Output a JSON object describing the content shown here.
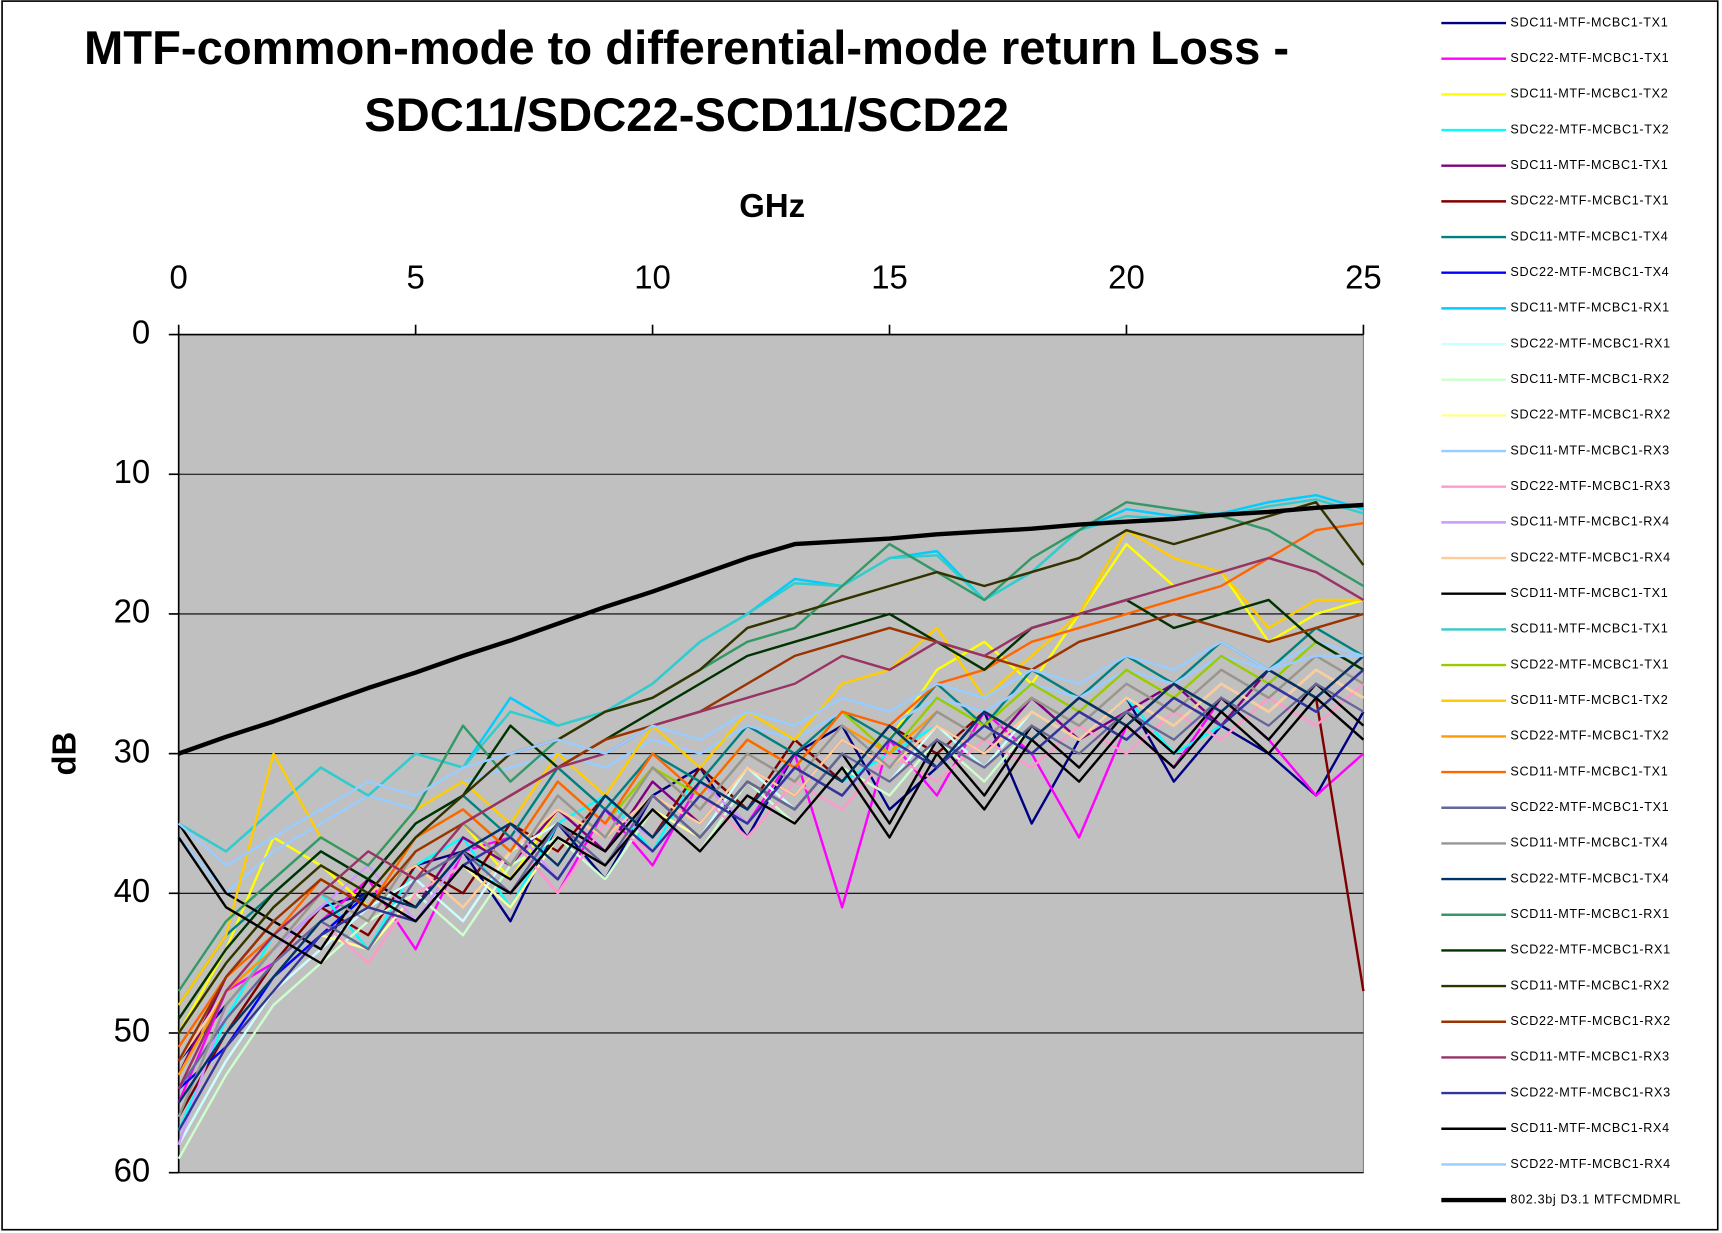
{
  "chart_data": {
    "type": "line",
    "title": [
      "MTF-common-mode to differential-mode return Loss -",
      "SDC11/SDC22-SCD11/SCD22"
    ],
    "x_label": "GHz",
    "y_label": "dB",
    "x": [
      0,
      1,
      2,
      3,
      4,
      5,
      6,
      7,
      8,
      9,
      10,
      11,
      12,
      13,
      14,
      15,
      16,
      17,
      18,
      19,
      20,
      21,
      22,
      23,
      24,
      25
    ],
    "xlim": [
      0,
      25
    ],
    "xticks": [
      0,
      5,
      10,
      15,
      20,
      25
    ],
    "ylim": [
      0,
      60
    ],
    "yticks": [
      0,
      10,
      20,
      30,
      40,
      50,
      60
    ],
    "y_reversed": true,
    "x_axis_position": "top",
    "grid": true,
    "plot_background": "#c0c0c0",
    "legend": "right",
    "series": [
      {
        "name": "SDC11-MTF-MCBC1-TX1",
        "color": "#000080",
        "values": [
          52,
          48,
          44,
          41,
          40,
          38,
          37,
          42,
          35,
          39,
          33,
          31,
          36,
          30,
          28,
          34,
          31,
          27,
          35,
          29,
          26,
          32,
          28,
          30,
          33,
          27
        ]
      },
      {
        "name": "SDC22-MTF-MCBC1-TX1",
        "color": "#ff00ff",
        "values": [
          55,
          47,
          45,
          42,
          39,
          44,
          37,
          36,
          40,
          34,
          38,
          32,
          35,
          30,
          41,
          29,
          33,
          27,
          30,
          36,
          28,
          31,
          26,
          29,
          33,
          30
        ]
      },
      {
        "name": "SDC11-MTF-MCBC1-TX2",
        "color": "#ffff00",
        "values": [
          50,
          44,
          36,
          38,
          41,
          37,
          35,
          39,
          34,
          36,
          31,
          33,
          29,
          31,
          27,
          29,
          24,
          22,
          25,
          20,
          15,
          18,
          17,
          22,
          20,
          19
        ]
      },
      {
        "name": "SDC22-MTF-MCBC1-TX2",
        "color": "#00ffff",
        "values": [
          57,
          49,
          43,
          40,
          44,
          38,
          36,
          41,
          35,
          33,
          37,
          31,
          34,
          29,
          32,
          30,
          28,
          31,
          27,
          29,
          26,
          30,
          28,
          25,
          27,
          24
        ]
      },
      {
        "name": "SDC11-MTF-MCBC1-TX1",
        "color": "#800080",
        "values": [
          53,
          46,
          42,
          44,
          39,
          41,
          36,
          38,
          34,
          37,
          32,
          35,
          31,
          33,
          29,
          31,
          28,
          30,
          26,
          29,
          27,
          25,
          28,
          24,
          26,
          23
        ]
      },
      {
        "name": "SDC22-MTF-MCBC1-TX1",
        "color": "#800000",
        "values": [
          56,
          50,
          45,
          41,
          43,
          38,
          40,
          35,
          37,
          33,
          36,
          31,
          34,
          29,
          32,
          28,
          30,
          27,
          29,
          26,
          28,
          25,
          27,
          24,
          26,
          47
        ]
      },
      {
        "name": "SDC11-MTF-MCBC1-TX4",
        "color": "#008080",
        "values": [
          48,
          43,
          40,
          37,
          39,
          35,
          33,
          36,
          31,
          34,
          30,
          32,
          28,
          30,
          27,
          29,
          25,
          28,
          24,
          26,
          23,
          25,
          22,
          24,
          21,
          23
        ]
      },
      {
        "name": "SDC22-MTF-MCBC1-TX4",
        "color": "#0000ff",
        "values": [
          54,
          51,
          46,
          43,
          40,
          42,
          38,
          36,
          39,
          34,
          37,
          33,
          35,
          31,
          33,
          29,
          31,
          28,
          30,
          27,
          29,
          26,
          28,
          25,
          27,
          24
        ]
      },
      {
        "name": "SDC11-MTF-MCBC1-RX1",
        "color": "#00ccff",
        "values": [
          35,
          37,
          34,
          31,
          33,
          30,
          31,
          26,
          28,
          27,
          25,
          22,
          20,
          17.5,
          18,
          16,
          15.5,
          19,
          17,
          14,
          12.5,
          13,
          12.8,
          12,
          11.5,
          12.5
        ]
      },
      {
        "name": "SDC22-MTF-MCBC1-RX1",
        "color": "#ccffff",
        "values": [
          58,
          52,
          47,
          44,
          41,
          39,
          42,
          37,
          35,
          38,
          33,
          36,
          31,
          34,
          30,
          32,
          28,
          31,
          27,
          29,
          26,
          28,
          25,
          27,
          24,
          26
        ]
      },
      {
        "name": "SDC11-MTF-MCBC1-RX2",
        "color": "#ccffcc",
        "values": [
          59,
          53,
          48,
          45,
          42,
          40,
          43,
          38,
          36,
          39,
          34,
          37,
          32,
          35,
          31,
          33,
          29,
          32,
          28,
          30,
          27,
          29,
          26,
          28,
          25,
          27
        ]
      },
      {
        "name": "SDC22-MTF-MCBC1-RX2",
        "color": "#ffff99",
        "values": [
          57,
          51,
          47,
          43,
          44,
          40,
          38,
          41,
          36,
          38,
          34,
          36,
          32,
          34,
          30,
          32,
          29,
          31,
          28,
          30,
          27,
          29,
          26,
          28,
          25,
          27
        ]
      },
      {
        "name": "SDC11-MTF-MCBC1-RX3",
        "color": "#99ccff",
        "values": [
          36,
          40,
          37,
          35,
          33,
          34,
          32,
          31,
          30,
          31,
          29,
          30,
          28,
          29,
          27,
          28,
          26,
          27,
          25,
          26,
          24,
          25,
          23,
          24,
          22,
          23
        ]
      },
      {
        "name": "SDC22-MTF-MCBC1-RX3",
        "color": "#ff99cc",
        "values": [
          55,
          50,
          46,
          42,
          45,
          40,
          38,
          36,
          40,
          35,
          37,
          33,
          36,
          32,
          34,
          30,
          32,
          29,
          31,
          28,
          30,
          27,
          29,
          26,
          28,
          25
        ]
      },
      {
        "name": "SDC11-MTF-MCBC1-RX4",
        "color": "#cc99ff",
        "values": [
          58,
          48,
          44,
          41,
          38,
          42,
          37,
          35,
          39,
          34,
          36,
          32,
          35,
          31,
          33,
          29,
          31,
          28,
          30,
          27,
          29,
          26,
          28,
          25,
          27,
          24
        ]
      },
      {
        "name": "SDC22-MTF-MCBC1-RX4",
        "color": "#ffcc99",
        "values": [
          52,
          47,
          43,
          45,
          40,
          38,
          41,
          37,
          34,
          36,
          33,
          35,
          31,
          33,
          29,
          31,
          28,
          30,
          27,
          29,
          26,
          28,
          25,
          27,
          24,
          26
        ]
      },
      {
        "name": "SCD11-MTF-MCBC1-TX1",
        "color": "#000000",
        "values": [
          35,
          40,
          42,
          44,
          39,
          41,
          37,
          39,
          35,
          37,
          33,
          36,
          32,
          34,
          30,
          35,
          29,
          33,
          28,
          31,
          27,
          30,
          26,
          29,
          25,
          28
        ]
      },
      {
        "name": "SCD11-MTF-MCBC1-TX1",
        "color": "#33cccc",
        "values": [
          35,
          37,
          34,
          31,
          33,
          30,
          31,
          27,
          28,
          27,
          25,
          22,
          20,
          17.8,
          18,
          16,
          15.8,
          19,
          17,
          14,
          13,
          13.2,
          13,
          12.3,
          11.8,
          12.8
        ]
      },
      {
        "name": "SCD22-MTF-MCBC1-TX1",
        "color": "#99cc00",
        "values": [
          50,
          45,
          41,
          38,
          40,
          36,
          34,
          37,
          32,
          35,
          31,
          33,
          29,
          31,
          27,
          30,
          26,
          28,
          25,
          27,
          24,
          26,
          23,
          25,
          22,
          24
        ]
      },
      {
        "name": "SCD11-MTF-MCBC1-TX2",
        "color": "#ffcc00",
        "values": [
          48,
          43,
          30,
          36,
          38,
          34,
          32,
          35,
          30,
          33,
          28,
          31,
          27,
          29,
          25,
          24,
          21,
          26,
          23,
          20,
          14,
          16,
          17,
          21,
          19,
          19
        ]
      },
      {
        "name": "SCD22-MTF-MCBC1-TX2",
        "color": "#ff9900",
        "values": [
          53,
          47,
          44,
          40,
          42,
          37,
          35,
          38,
          33,
          36,
          31,
          34,
          30,
          32,
          28,
          30,
          27,
          29,
          26,
          28,
          25,
          27,
          24,
          26,
          23,
          25
        ]
      },
      {
        "name": "SCD11-MTF-MCBC1-TX1",
        "color": "#ff6600",
        "values": [
          51,
          46,
          43,
          39,
          41,
          36,
          34,
          37,
          32,
          35,
          30,
          33,
          29,
          31,
          27,
          28,
          25,
          24,
          22,
          21,
          20,
          19,
          18,
          16,
          14,
          13.5
        ]
      },
      {
        "name": "SCD22-MTF-MCBC1-TX1",
        "color": "#666699",
        "values": [
          54,
          49,
          45,
          42,
          44,
          39,
          37,
          40,
          35,
          38,
          33,
          36,
          32,
          34,
          30,
          32,
          29,
          31,
          28,
          30,
          27,
          29,
          26,
          28,
          25,
          27
        ]
      },
      {
        "name": "SCD11-MTF-MCBC1-TX4",
        "color": "#969696",
        "values": [
          56,
          48,
          44,
          40,
          42,
          37,
          35,
          38,
          33,
          36,
          31,
          34,
          30,
          32,
          28,
          31,
          27,
          29,
          26,
          28,
          25,
          27,
          24,
          26,
          23,
          25
        ]
      },
      {
        "name": "SCD22-MTF-MCBC1-TX4",
        "color": "#003366",
        "values": [
          55,
          50,
          46,
          42,
          40,
          41,
          37,
          35,
          38,
          33,
          36,
          32,
          34,
          30,
          32,
          28,
          31,
          27,
          29,
          26,
          28,
          25,
          27,
          24,
          26,
          23
        ]
      },
      {
        "name": "SCD11-MTF-MCBC1-RX1",
        "color": "#339966",
        "values": [
          47,
          42,
          39,
          36,
          38,
          34,
          28,
          32,
          29,
          27,
          26,
          24,
          22,
          21,
          18,
          15,
          17,
          19,
          16,
          14,
          12,
          12.5,
          13,
          14,
          16,
          18
        ]
      },
      {
        "name": "SCD22-MTF-MCBC1-RX1",
        "color": "#003300",
        "values": [
          49,
          44,
          40,
          37,
          39,
          35,
          33,
          28,
          31,
          29,
          27,
          25,
          23,
          22,
          21,
          20,
          22,
          24,
          21,
          20,
          19,
          21,
          20,
          19,
          22,
          24
        ]
      },
      {
        "name": "SCD11-MTF-MCBC1-RX2",
        "color": "#333300",
        "values": [
          50,
          45,
          41,
          38,
          40,
          36,
          33,
          30,
          29,
          27,
          26,
          24,
          21,
          20,
          19,
          18,
          17,
          18,
          17,
          16,
          14,
          15,
          14,
          13,
          12,
          16.5
        ]
      },
      {
        "name": "SCD22-MTF-MCBC1-RX2",
        "color": "#993300",
        "values": [
          52,
          46,
          42,
          39,
          41,
          37,
          35,
          33,
          31,
          29,
          28,
          27,
          25,
          23,
          22,
          21,
          22,
          23,
          24,
          22,
          21,
          20,
          21,
          22,
          21,
          20
        ]
      },
      {
        "name": "SCD11-MTF-MCBC1-RX3",
        "color": "#993366",
        "values": [
          54,
          47,
          43,
          40,
          37,
          39,
          35,
          33,
          31,
          30,
          28,
          27,
          26,
          25,
          23,
          24,
          22,
          23,
          21,
          20,
          19,
          18,
          17,
          16,
          17,
          19
        ]
      },
      {
        "name": "SCD22-MTF-MCBC1-RX3",
        "color": "#333399",
        "values": [
          57,
          51,
          47,
          43,
          41,
          42,
          38,
          36,
          39,
          34,
          37,
          33,
          35,
          31,
          33,
          29,
          31,
          28,
          30,
          27,
          29,
          26,
          28,
          25,
          27,
          24
        ]
      },
      {
        "name": "SCD11-MTF-MCBC1-RX4",
        "color": "#000000",
        "values": [
          36,
          41,
          43,
          45,
          40,
          42,
          38,
          40,
          36,
          38,
          34,
          37,
          33,
          35,
          31,
          36,
          30,
          34,
          29,
          32,
          28,
          31,
          27,
          30,
          26,
          29
        ]
      },
      {
        "name": "SCD22-MTF-MCBC1-RX4",
        "color": "#99ccff",
        "values": [
          35,
          38,
          36,
          34,
          32,
          33,
          31,
          30,
          29,
          30,
          28,
          29,
          27,
          28,
          26,
          27,
          25,
          26,
          24,
          25,
          23,
          24,
          22,
          24,
          23,
          23
        ]
      },
      {
        "name": "802.3bj D3.1 MTFCMDMRL",
        "color": "#000000",
        "width": 4,
        "values": [
          30,
          28.8,
          27.7,
          26.5,
          25.3,
          24.2,
          23.0,
          21.9,
          20.7,
          19.5,
          18.4,
          17.2,
          16.0,
          15.0,
          14.8,
          14.6,
          14.3,
          14.1,
          13.9,
          13.6,
          13.4,
          13.2,
          12.9,
          12.7,
          12.4,
          12.2
        ]
      }
    ]
  }
}
